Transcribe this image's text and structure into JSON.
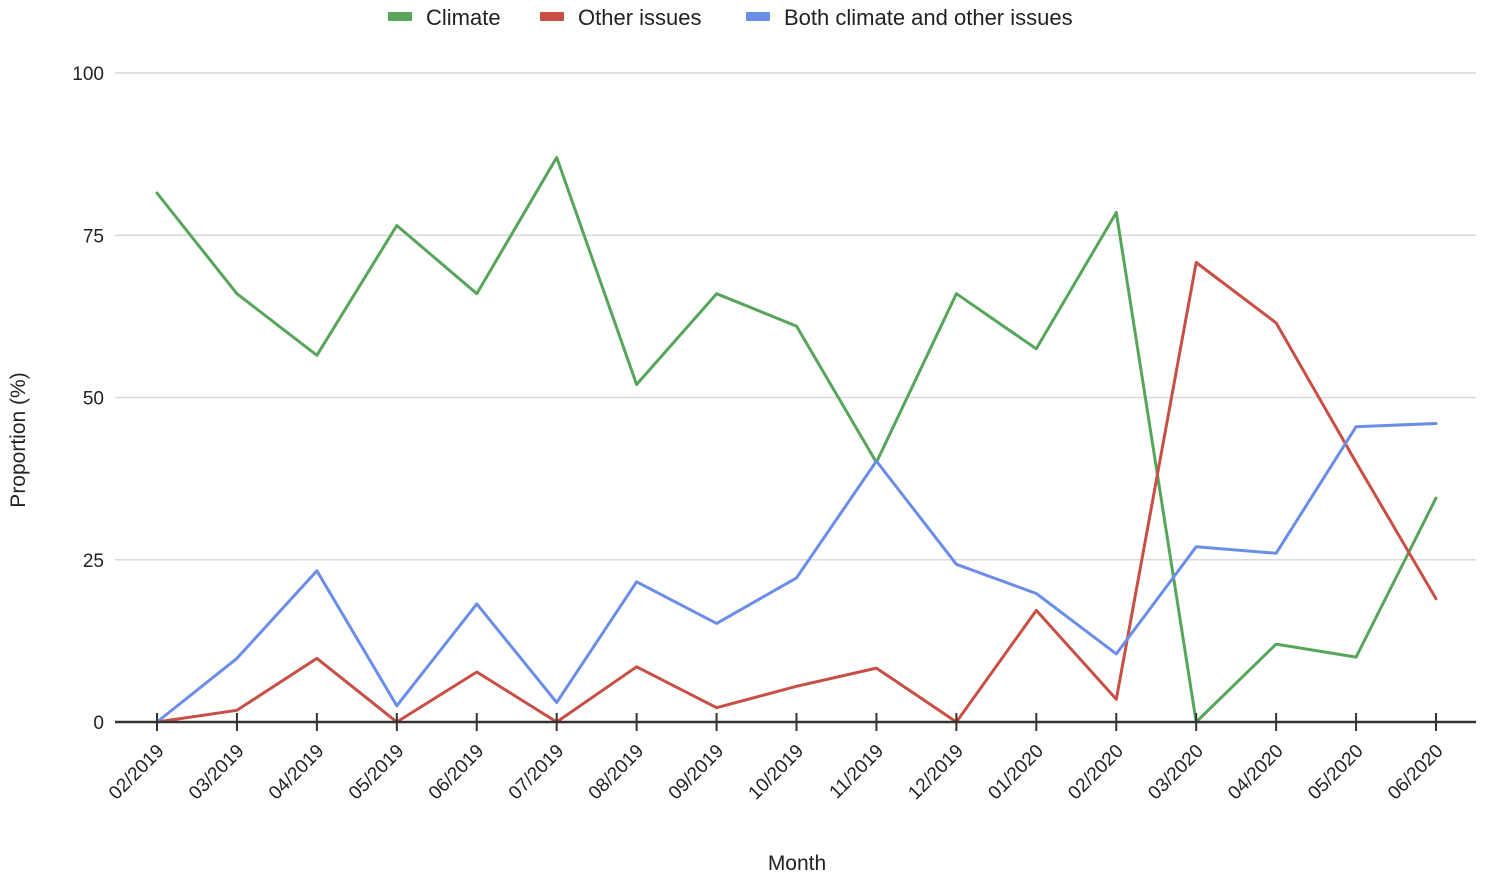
{
  "chart_data": {
    "type": "line",
    "title": "",
    "xlabel": "Month",
    "ylabel": "Proportion (%)",
    "ylim": [
      0,
      100
    ],
    "yticks": [
      0,
      25,
      50,
      75,
      100
    ],
    "grid": true,
    "legend_position": "top",
    "categories": [
      "02/2019",
      "03/2019",
      "04/2019",
      "05/2019",
      "06/2019",
      "07/2019",
      "08/2019",
      "09/2019",
      "10/2019",
      "11/2019",
      "12/2019",
      "01/2020",
      "02/2020",
      "03/2020",
      "04/2020",
      "05/2020",
      "06/2020"
    ],
    "series": [
      {
        "name": "Climate",
        "color": "#57a55a",
        "values": [
          81.5,
          66,
          56.5,
          76.5,
          66,
          87,
          52,
          66,
          61,
          40,
          66,
          57.5,
          78.5,
          0,
          12,
          10,
          34.5
        ]
      },
      {
        "name": "Other issues",
        "color": "#c84f45",
        "values": [
          0,
          1.8,
          9.8,
          0,
          7.7,
          0,
          8.5,
          2.2,
          5.5,
          8.3,
          0,
          17.2,
          3.5,
          70.8,
          61.5,
          40,
          19
        ]
      },
      {
        "name": "Both climate and other issues",
        "color": "#6a8ee8",
        "values": [
          0,
          9.8,
          23.3,
          2.5,
          18.2,
          3,
          21.6,
          15.2,
          22.2,
          40.2,
          24.3,
          19.8,
          10.5,
          27,
          26,
          45.5,
          46
        ]
      }
    ]
  }
}
